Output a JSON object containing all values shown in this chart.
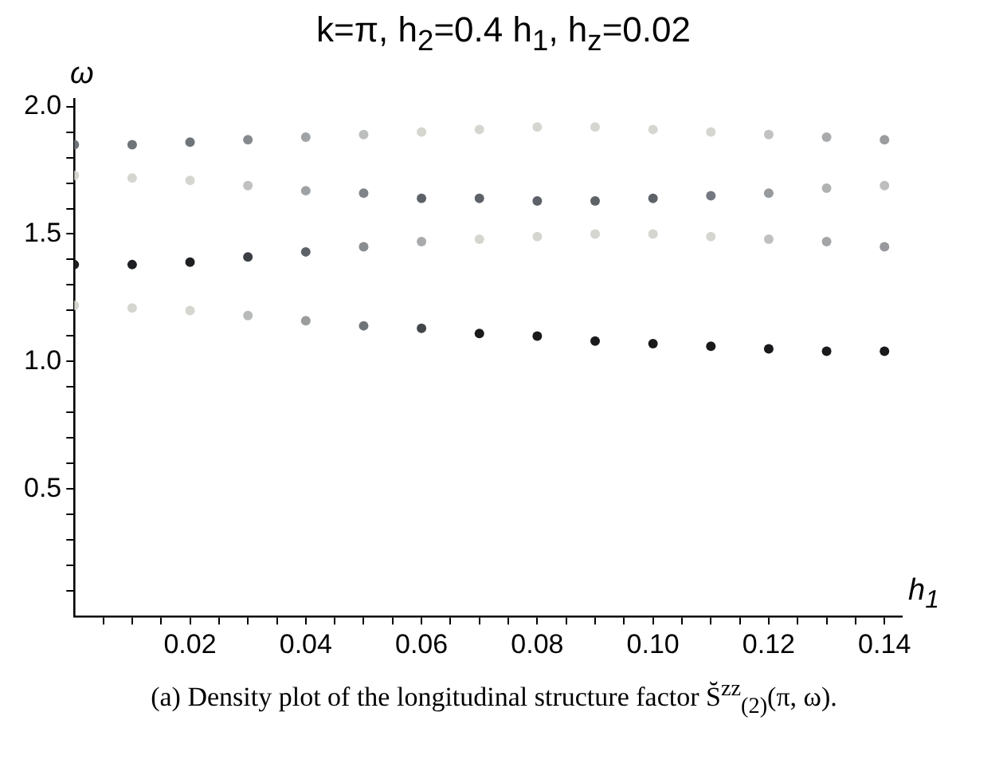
{
  "chart_data": {
    "type": "scatter",
    "title": "k=π, h$_{2}$=0.4 h$_{1}$, h$_{z}$=0.02",
    "xlabel": "h$_{1}$",
    "ylabel": "ω",
    "annotations": [
      "(a) Density plot of the longitudinal structure factor S̆$^{zz}$$_{(2)}$(π, ω)."
    ],
    "x": [
      0,
      0.01,
      0.02,
      0.03,
      0.04,
      0.05,
      0.06,
      0.07,
      0.08,
      0.09,
      0.1,
      0.11,
      0.12,
      0.13,
      0.14
    ],
    "series": [
      {
        "values": [
          1.85,
          1.85,
          1.86,
          1.87,
          1.88,
          1.89,
          1.9,
          1.91,
          1.92,
          1.92,
          1.91,
          1.9,
          1.89,
          1.88,
          1.87
        ],
        "colors": [
          "#6f7479",
          "#6f7479",
          "#6f7479",
          "#868a8e",
          "#a0a3a5",
          "#bcbdbd",
          "#d6d6d0",
          "#d6d6d0",
          "#d6d6d0",
          "#d6d6d0",
          "#d6d6d0",
          "#d6d6d0",
          "#c0c1c0",
          "#a8aaab",
          "#9a9c9e"
        ]
      },
      {
        "values": [
          1.73,
          1.72,
          1.71,
          1.69,
          1.67,
          1.66,
          1.64,
          1.64,
          1.63,
          1.63,
          1.64,
          1.65,
          1.66,
          1.68,
          1.69
        ],
        "colors": [
          "#d6d6d0",
          "#d6d6d0",
          "#d6d6d0",
          "#c0c1c0",
          "#9fa2a4",
          "#80848a",
          "#5d6268",
          "#5d6268",
          "#5d6268",
          "#5d6268",
          "#5d6268",
          "#747880",
          "#989b9e",
          "#b0b1b1",
          "#bdbebd"
        ]
      },
      {
        "values": [
          1.38,
          1.38,
          1.39,
          1.41,
          1.43,
          1.45,
          1.47,
          1.48,
          1.49,
          1.5,
          1.5,
          1.49,
          1.48,
          1.47,
          1.45
        ],
        "colors": [
          "#1e1f22",
          "#1e1f22",
          "#1e1f22",
          "#3c3f44",
          "#5d6268",
          "#8a8d90",
          "#a8aaab",
          "#d6d6d0",
          "#d6d6d0",
          "#d6d6d0",
          "#d6d6d0",
          "#d6d6d0",
          "#bfc0bf",
          "#a3a5a7",
          "#97999c"
        ]
      },
      {
        "values": [
          1.22,
          1.21,
          1.2,
          1.18,
          1.16,
          1.14,
          1.13,
          1.11,
          1.1,
          1.08,
          1.07,
          1.06,
          1.05,
          1.04,
          1.04
        ],
        "colors": [
          "#d6d6d0",
          "#d6d6d0",
          "#d6d6d0",
          "#b8b9b9",
          "#9a9c9e",
          "#6f7479",
          "#43464b",
          "#1a1a1c",
          "#1a1a1c",
          "#1a1a1c",
          "#1a1a1c",
          "#1a1a1c",
          "#1a1a1c",
          "#1a1a1c",
          "#1a1a1c"
        ]
      }
    ],
    "marker": "circle",
    "legend": false,
    "grid": false,
    "xlim": [
      0,
      0.143
    ],
    "ylim": [
      0,
      2.03
    ],
    "xticks": [
      {
        "value": 0.005,
        "label": null
      },
      {
        "value": 0.01,
        "label": null
      },
      {
        "value": 0.015,
        "label": null
      },
      {
        "value": 0.02,
        "label": "0.02"
      },
      {
        "value": 0.025,
        "label": null
      },
      {
        "value": 0.03,
        "label": null
      },
      {
        "value": 0.035,
        "label": null
      },
      {
        "value": 0.04,
        "label": "0.04"
      },
      {
        "value": 0.045,
        "label": null
      },
      {
        "value": 0.05,
        "label": null
      },
      {
        "value": 0.055,
        "label": null
      },
      {
        "value": 0.06,
        "label": "0.06"
      },
      {
        "value": 0.065,
        "label": null
      },
      {
        "value": 0.07,
        "label": null
      },
      {
        "value": 0.075,
        "label": null
      },
      {
        "value": 0.08,
        "label": "0.08"
      },
      {
        "value": 0.085,
        "label": null
      },
      {
        "value": 0.09,
        "label": null
      },
      {
        "value": 0.095,
        "label": null
      },
      {
        "value": 0.1,
        "label": "0.10"
      },
      {
        "value": 0.105,
        "label": null
      },
      {
        "value": 0.11,
        "label": null
      },
      {
        "value": 0.115,
        "label": null
      },
      {
        "value": 0.12,
        "label": "0.12"
      },
      {
        "value": 0.125,
        "label": null
      },
      {
        "value": 0.13,
        "label": null
      },
      {
        "value": 0.135,
        "label": null
      },
      {
        "value": 0.14,
        "label": "0.14"
      }
    ],
    "yticks": [
      {
        "value": 0.1,
        "label": null
      },
      {
        "value": 0.2,
        "label": null
      },
      {
        "value": 0.3,
        "label": null
      },
      {
        "value": 0.4,
        "label": null
      },
      {
        "value": 0.5,
        "label": "0.5"
      },
      {
        "value": 0.6,
        "label": null
      },
      {
        "value": 0.7,
        "label": null
      },
      {
        "value": 0.8,
        "label": null
      },
      {
        "value": 0.9,
        "label": null
      },
      {
        "value": 1,
        "label": "1.0"
      },
      {
        "value": 1.1,
        "label": null
      },
      {
        "value": 1.2,
        "label": null
      },
      {
        "value": 1.3,
        "label": null
      },
      {
        "value": 1.4,
        "label": null
      },
      {
        "value": 1.5,
        "label": "1.5"
      },
      {
        "value": 1.6,
        "label": null
      },
      {
        "value": 1.7,
        "label": null
      },
      {
        "value": 1.8,
        "label": null
      },
      {
        "value": 1.9,
        "label": null
      },
      {
        "value": 2,
        "label": "2.0"
      }
    ]
  }
}
